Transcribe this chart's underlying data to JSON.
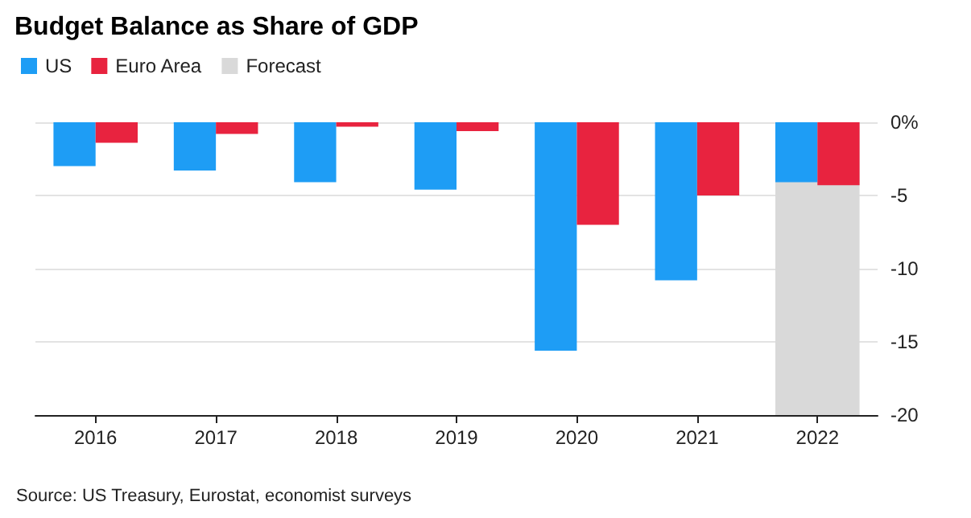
{
  "chart_data": {
    "type": "bar",
    "title": "Budget Balance as Share of GDP",
    "categories": [
      "2016",
      "2017",
      "2018",
      "2019",
      "2020",
      "2021",
      "2022"
    ],
    "series": [
      {
        "name": "US",
        "color": "#1e9df5",
        "values": [
          -3.0,
          -3.3,
          -4.1,
          -4.6,
          -15.6,
          -10.8,
          -4.1
        ]
      },
      {
        "name": "Euro Area",
        "color": "#e8233f",
        "values": [
          -1.4,
          -0.8,
          -0.3,
          -0.6,
          -7.0,
          -5.0,
          -4.3
        ]
      }
    ],
    "bands": [
      {
        "axis": "x",
        "from": "2022",
        "to": "2022",
        "label": "Forecast",
        "color": "#d9d9d9"
      }
    ],
    "ylim": [
      -20,
      0
    ],
    "yticks": [
      {
        "value": 0,
        "label": "0%"
      },
      -5,
      -10,
      -15,
      -20
    ],
    "grid": "y",
    "legend": "top left",
    "annotations": [
      "Source: US Treasury, Eurostat, economist surveys"
    ]
  }
}
